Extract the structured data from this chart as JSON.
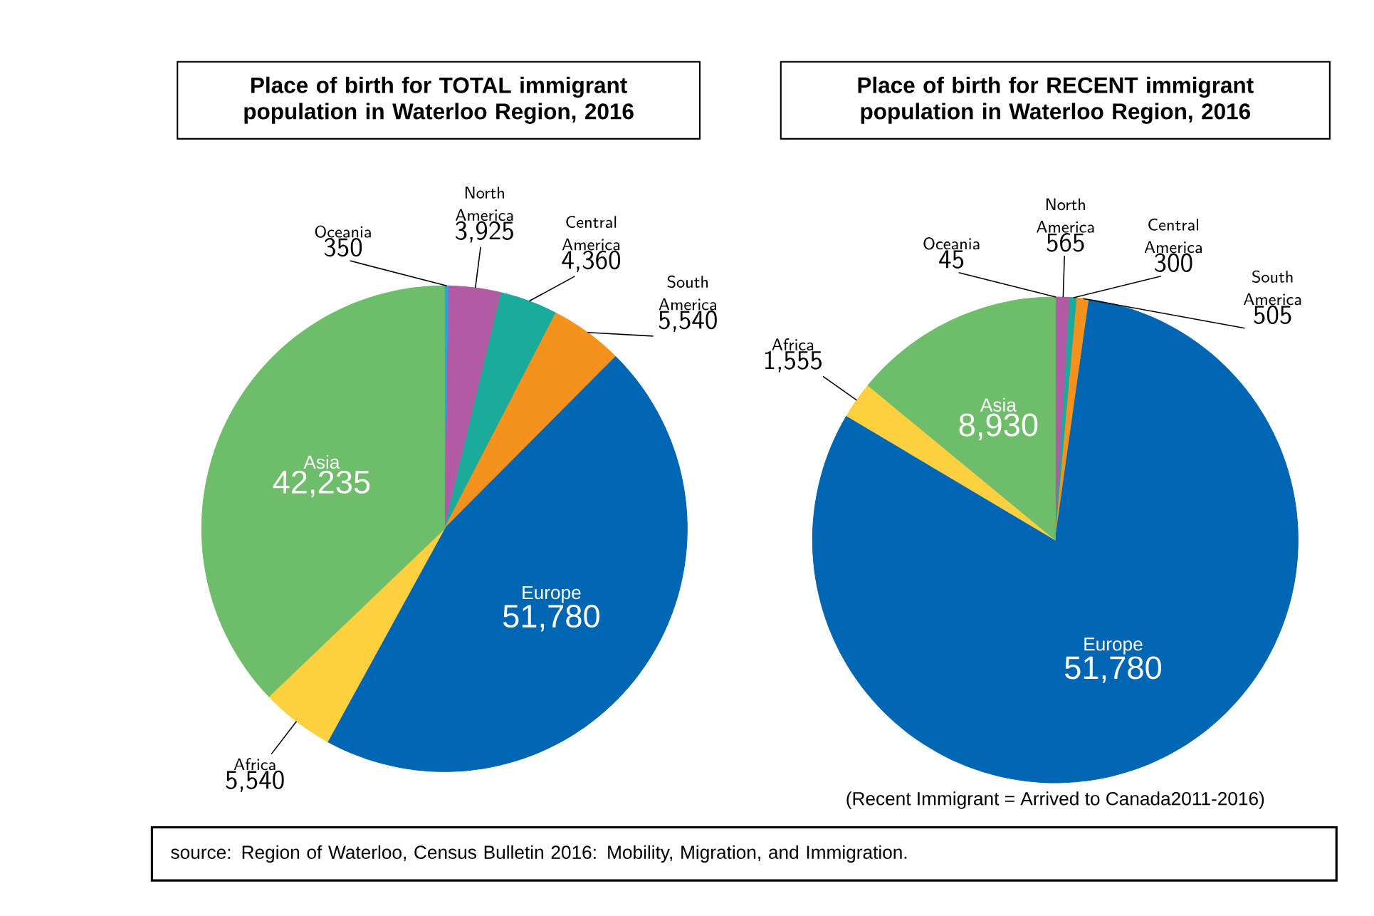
{
  "chart_data": [
    {
      "type": "pie",
      "title": "Place of birth for TOTAL immigrant population in Waterloo Region, 2016",
      "categories": [
        "Oceania",
        "North America",
        "Central America",
        "South America",
        "Europe",
        "Africa",
        "Asia"
      ],
      "values": [
        350,
        3925,
        4360,
        5540,
        51780,
        5540,
        42235
      ],
      "value_labels": [
        "350",
        "3,925",
        "4,360",
        "5,540",
        "51,780",
        "5,540",
        "42,235"
      ],
      "colors": [
        "#29a3dc",
        "#b25ba4",
        "#1aab9b",
        "#f5921e",
        "#0066b3",
        "#fcd03f",
        "#6dbd6a"
      ]
    },
    {
      "type": "pie",
      "title": "Place of birth for RECENT immigrant population in Waterloo Region, 2016",
      "categories": [
        "Oceania",
        "North America",
        "Central America",
        "South America",
        "Europe",
        "Africa",
        "Asia"
      ],
      "values": [
        45,
        565,
        300,
        505,
        51780,
        1555,
        8930
      ],
      "value_labels": [
        "45",
        "565",
        "300",
        "505",
        "51,780",
        "1,555",
        "8,930"
      ],
      "colors": [
        "#29a3dc",
        "#b25ba4",
        "#1aab9b",
        "#f5921e",
        "#0066b3",
        "#fcd03f",
        "#6dbd6a"
      ],
      "annotations": [
        "(Recent Immigrant = Arrived to Canada2011-2016)",
        "source: Region of Waterloo, Census Bulletin 2016:  Mobility, Migration, and Immigration."
      ]
    }
  ]
}
